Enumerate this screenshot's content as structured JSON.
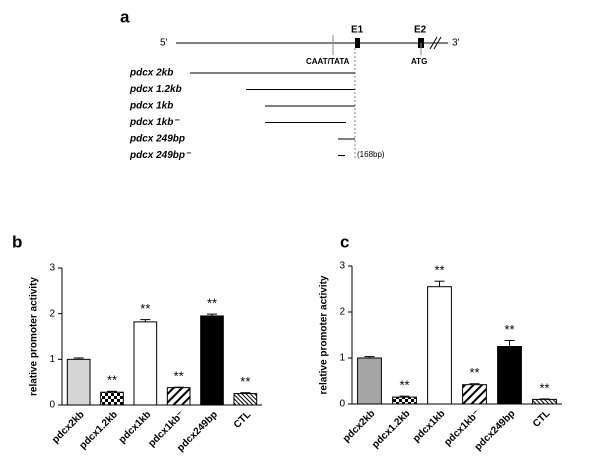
{
  "panel_a": {
    "label": "a",
    "five_prime": "5'",
    "three_prime": "3'",
    "e1": "E1",
    "e2": "E2",
    "caat": "CAAT/TATA",
    "atg": "ATG",
    "constructs": [
      "pdcx 2kb",
      "pdcx 1.2kb",
      "pdcx 1kb",
      "pdcx 1kb⁻",
      "pdcx 249bp",
      "pdcx 249bp⁻"
    ],
    "note": "(168bp)"
  },
  "chart_data": [
    {
      "type": "bar",
      "panel": "b",
      "ylabel": "relative promoter activity",
      "categories": [
        "pdcx2kb",
        "pdcx1.2kb",
        "pdcx1kb",
        "pdcx1kb⁻",
        "pdcx249bp",
        "CTL"
      ],
      "values": [
        1.0,
        0.28,
        1.82,
        0.38,
        1.95,
        0.25
      ],
      "errors": [
        0.03,
        0.02,
        0.05,
        0.01,
        0.04,
        0.02
      ],
      "annotations": [
        null,
        "**",
        "**",
        "**",
        "**",
        "**"
      ],
      "colors": [
        "#d4d4d4",
        "#000000",
        "#ffffff",
        "#000000",
        "#000000",
        "#000000"
      ],
      "patterns": [
        "solid",
        "checker",
        "solid",
        "diagonal",
        "solid",
        "diagonal-dense"
      ],
      "ylim": [
        0,
        3
      ],
      "yticks": [
        0,
        1,
        2,
        3
      ]
    },
    {
      "type": "bar",
      "panel": "c",
      "ylabel": "relative promoter activity",
      "categories": [
        "pdcx2kb",
        "pdcx1.2kb",
        "pdcx1kb",
        "pdcx1kb⁻",
        "pdcx249bp",
        "CTL"
      ],
      "values": [
        1.0,
        0.15,
        2.55,
        0.42,
        1.25,
        0.1
      ],
      "errors": [
        0.03,
        0.02,
        0.12,
        0.02,
        0.13,
        0.01
      ],
      "annotations": [
        null,
        "**",
        "**",
        "**",
        "**",
        "**"
      ],
      "colors": [
        "#a6a6a6",
        "#000000",
        "#ffffff",
        "#000000",
        "#000000",
        "#000000"
      ],
      "patterns": [
        "solid",
        "checker",
        "solid",
        "diagonal",
        "solid",
        "diagonal-dense"
      ],
      "ylim": [
        0,
        3
      ],
      "yticks": [
        0,
        1,
        2,
        3
      ]
    }
  ]
}
